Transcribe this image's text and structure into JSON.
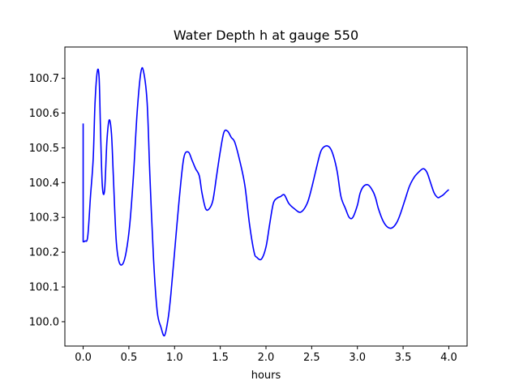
{
  "chart_data": {
    "type": "line",
    "title": "Water Depth h at gauge 550",
    "xlabel": "hours",
    "ylabel": "",
    "xlim": [
      -0.2,
      4.2
    ],
    "ylim": [
      99.93,
      100.79
    ],
    "xticks": [
      0.0,
      0.5,
      1.0,
      1.5,
      2.0,
      2.5,
      3.0,
      3.5,
      4.0
    ],
    "xtick_labels": [
      "0.0",
      "0.5",
      "1.0",
      "1.5",
      "2.0",
      "2.5",
      "3.0",
      "3.5",
      "4.0"
    ],
    "yticks": [
      100.0,
      100.1,
      100.2,
      100.3,
      100.4,
      100.5,
      100.6,
      100.7
    ],
    "ytick_labels": [
      "100.0",
      "100.1",
      "100.2",
      "100.3",
      "100.4",
      "100.5",
      "100.6",
      "100.7"
    ],
    "grid": false,
    "series": [
      {
        "color": "#0000ff",
        "x": [
          0.0,
          0.0,
          0.02,
          0.05,
          0.08,
          0.11,
          0.13,
          0.155,
          0.175,
          0.19,
          0.21,
          0.235,
          0.26,
          0.285,
          0.31,
          0.33,
          0.36,
          0.39,
          0.43,
          0.47,
          0.51,
          0.55,
          0.59,
          0.63,
          0.66,
          0.7,
          0.73,
          0.77,
          0.81,
          0.85,
          0.89,
          0.93,
          0.96,
          1.0,
          1.05,
          1.1,
          1.15,
          1.19,
          1.23,
          1.27,
          1.3,
          1.34,
          1.38,
          1.42,
          1.46,
          1.5,
          1.54,
          1.58,
          1.62,
          1.66,
          1.72,
          1.77,
          1.82,
          1.87,
          1.9,
          1.95,
          2.0,
          2.04,
          2.08,
          2.12,
          2.16,
          2.2,
          2.25,
          2.31,
          2.38,
          2.45,
          2.5,
          2.55,
          2.6,
          2.65,
          2.7,
          2.74,
          2.78,
          2.82,
          2.87,
          2.91,
          2.95,
          3.0,
          3.03,
          3.07,
          3.12,
          3.17,
          3.2,
          3.23,
          3.28,
          3.33,
          3.38,
          3.43,
          3.47,
          3.52,
          3.57,
          3.62,
          3.67,
          3.72,
          3.76,
          3.8,
          3.84,
          3.88,
          3.91,
          3.94,
          3.97,
          4.0
        ],
        "values": [
          100.57,
          100.23,
          100.232,
          100.245,
          100.36,
          100.47,
          100.63,
          100.72,
          100.7,
          100.55,
          100.39,
          100.38,
          100.52,
          100.58,
          100.54,
          100.42,
          100.24,
          100.175,
          100.165,
          100.2,
          100.28,
          100.42,
          100.6,
          100.715,
          100.72,
          100.63,
          100.42,
          100.18,
          100.03,
          99.985,
          99.96,
          100.01,
          100.08,
          100.2,
          100.35,
          100.47,
          100.488,
          100.465,
          100.44,
          100.42,
          100.37,
          100.325,
          100.325,
          100.35,
          100.42,
          100.49,
          100.545,
          100.548,
          100.53,
          100.515,
          100.455,
          100.39,
          100.28,
          100.2,
          100.185,
          100.18,
          100.215,
          100.28,
          100.34,
          100.355,
          100.36,
          100.365,
          100.34,
          100.325,
          100.315,
          100.34,
          100.385,
          100.44,
          100.49,
          100.505,
          100.5,
          100.475,
          100.43,
          100.36,
          100.325,
          100.3,
          100.3,
          100.335,
          100.37,
          100.39,
          100.393,
          100.375,
          100.355,
          100.325,
          100.29,
          100.272,
          100.27,
          100.285,
          100.31,
          100.35,
          100.39,
          100.415,
          100.43,
          100.44,
          100.43,
          100.4,
          100.37,
          100.357,
          100.36,
          100.365,
          100.373,
          100.38
        ]
      }
    ]
  }
}
